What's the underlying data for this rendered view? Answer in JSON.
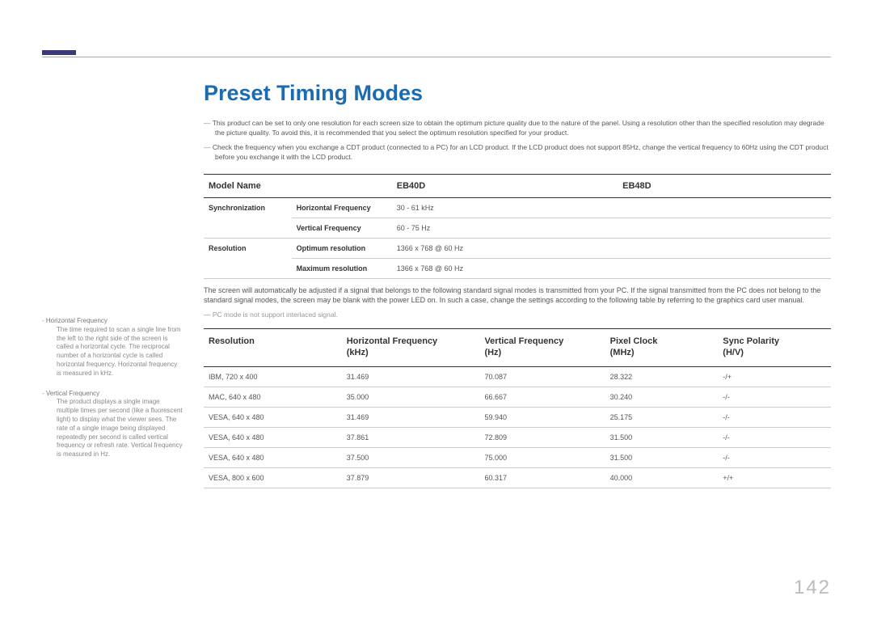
{
  "colors": {
    "accent_bar": "#3a3a7a",
    "title": "#1a6bb0",
    "rule": "#aaaaaa",
    "header_rule": "#333333",
    "row_rule": "#cccccc",
    "body_text": "#555555",
    "muted": "#999999",
    "page_num": "#bbbbbb",
    "background": "#ffffff"
  },
  "title": "Preset Timing Modes",
  "notes": [
    "This product can be set to only one resolution for each screen size to obtain the optimum picture quality due to the nature of the panel. Using a resolution other than the specified resolution may degrade the picture quality. To avoid this, it is recommended that you select the optimum resolution specified for your product.",
    "Check the frequency when you exchange a CDT product (connected to a PC) for an LCD product. If the LCD product does not support 85Hz, change the vertical frequency to 60Hz using the CDT product before you exchange it with the LCD product."
  ],
  "model_table": {
    "headers": [
      "Model Name",
      "EB40D",
      "EB48D"
    ],
    "rows": [
      {
        "group": "Synchronization",
        "label": "Horizontal Frequency",
        "value": "30 - 61 kHz"
      },
      {
        "group": "",
        "label": "Vertical Frequency",
        "value": "60 - 75 Hz"
      },
      {
        "group": "Resolution",
        "label": "Optimum resolution",
        "value": "1366 x 768 @ 60 Hz"
      },
      {
        "group": "",
        "label": "Maximum resolution",
        "value": "1366 x 768 @ 60 Hz"
      }
    ]
  },
  "paragraph": "The screen will automatically be adjusted if a signal that belongs to the following standard signal modes is transmitted from your PC. If the signal transmitted from the PC does not belong to the standard signal modes, the screen may be blank with the power LED on. In such a case, change the settings according to the following table by referring to the graphics card user manual.",
  "pc_note": "PC mode is not support interlaced signal.",
  "timing_table": {
    "headers": [
      {
        "l1": "Resolution",
        "l2": ""
      },
      {
        "l1": "Horizontal Frequency",
        "l2": "(kHz)"
      },
      {
        "l1": "Vertical Frequency",
        "l2": "(Hz)"
      },
      {
        "l1": "Pixel Clock",
        "l2": "(MHz)"
      },
      {
        "l1": "Sync Polarity",
        "l2": "(H/V)"
      }
    ],
    "rows": [
      [
        "IBM, 720 x 400",
        "31.469",
        "70.087",
        "28.322",
        "-/+"
      ],
      [
        "MAC, 640 x 480",
        "35.000",
        "66.667",
        "30.240",
        "-/-"
      ],
      [
        "VESA, 640 x 480",
        "31.469",
        "59.940",
        "25.175",
        "-/-"
      ],
      [
        "VESA, 640 x 480",
        "37.861",
        "72.809",
        "31.500",
        "-/-"
      ],
      [
        "VESA, 640 x 480",
        "37.500",
        "75.000",
        "31.500",
        "-/-"
      ],
      [
        "VESA, 800 x 600",
        "37.879",
        "60.317",
        "40.000",
        "+/+"
      ]
    ]
  },
  "glossary": [
    {
      "term": "Horizontal Frequency",
      "def": "The time required to scan a single line from the left to the right side of the screen is called a horizontal cycle. The reciprocal number of a horizontal cycle is called horizontal frequency. Horizontal frequency is measured in kHz."
    },
    {
      "term": "Vertical Frequency",
      "def": "The product displays a single image multiple times per second (like a fluorescent light) to display what the viewer sees. The rate of a single image being displayed repeatedly per second is called vertical frequency or refresh rate. Vertical frequency is measured in Hz."
    }
  ],
  "page_number": "142"
}
